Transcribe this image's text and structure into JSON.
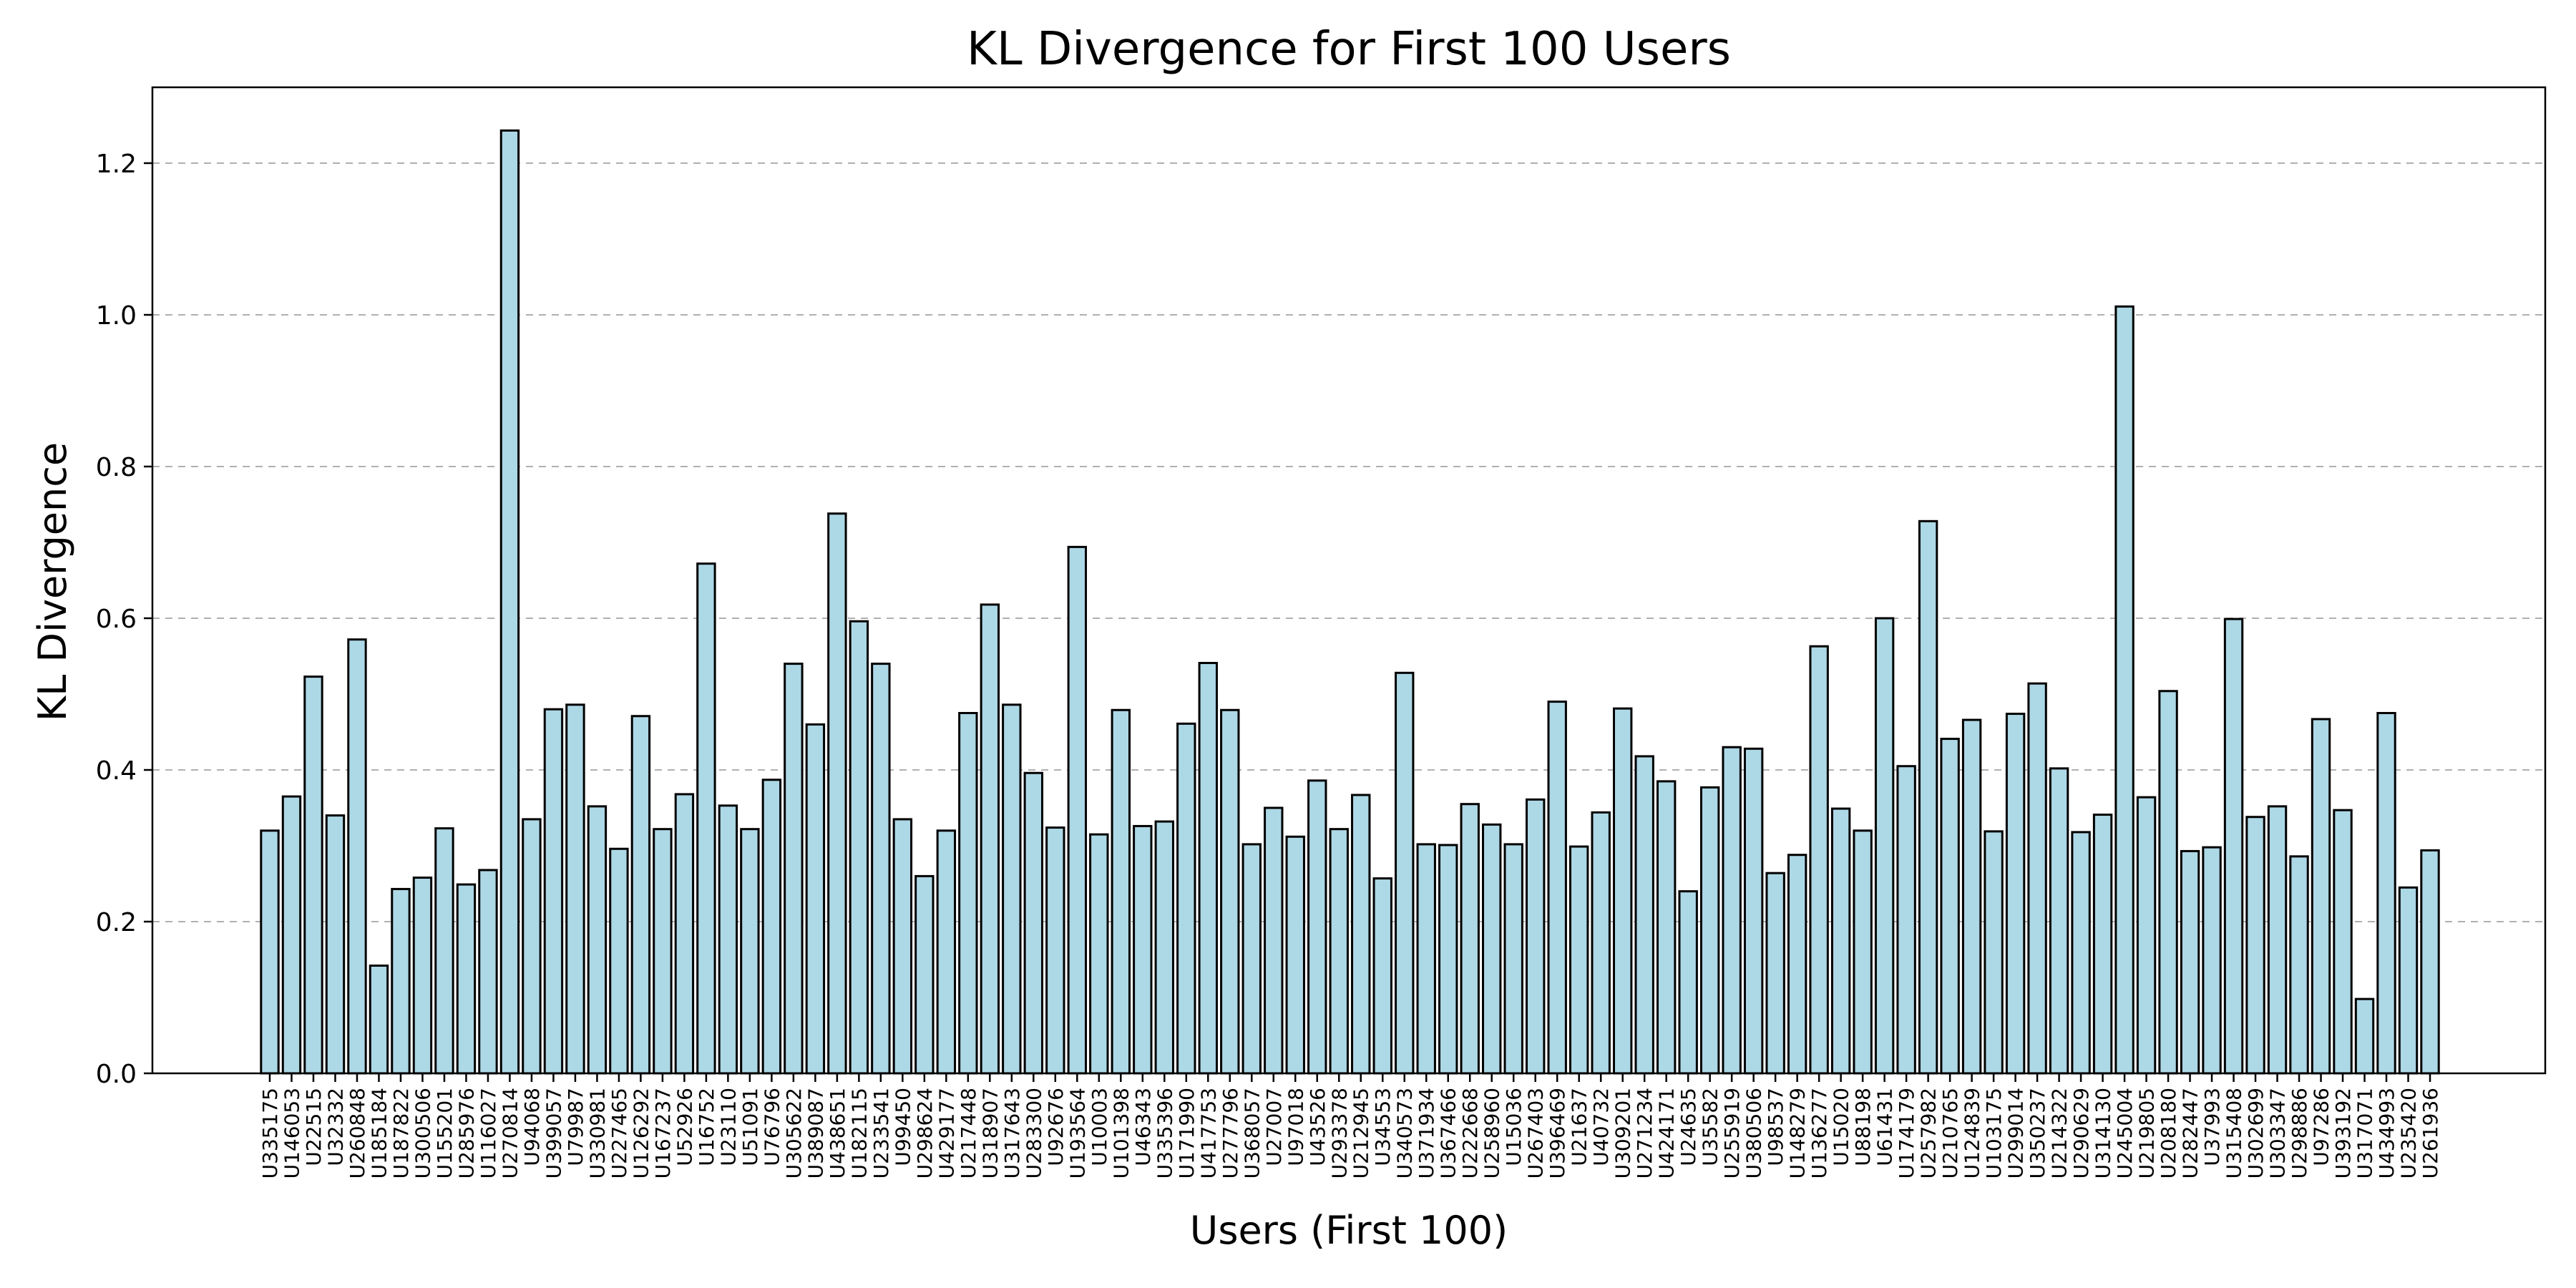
{
  "chart_data": {
    "type": "bar",
    "title": "KL Divergence for First 100 Users",
    "xlabel": "Users (First 100)",
    "ylabel": "KL Divergence",
    "ylim": [
      0,
      1.3
    ],
    "yticks": [
      0.0,
      0.2,
      0.4,
      0.6,
      0.8,
      1.0,
      1.2
    ],
    "ytick_labels": [
      "0.0",
      "0.2",
      "0.4",
      "0.6",
      "0.8",
      "1.0",
      "1.2"
    ],
    "grid": "y-axis, dashed",
    "bar_color": "#add8e6",
    "edge_color": "#000000",
    "categories": [
      "U335175",
      "U146053",
      "U22515",
      "U32332",
      "U260848",
      "U185184",
      "U187822",
      "U300506",
      "U155201",
      "U285976",
      "U116027",
      "U270814",
      "U94068",
      "U399057",
      "U79987",
      "U330981",
      "U227465",
      "U126292",
      "U167237",
      "U52926",
      "U16752",
      "U23110",
      "U51091",
      "U76796",
      "U305622",
      "U389087",
      "U438651",
      "U182115",
      "U233541",
      "U99450",
      "U298624",
      "U429177",
      "U217448",
      "U318907",
      "U317643",
      "U283300",
      "U92676",
      "U193564",
      "U10003",
      "U101398",
      "U46343",
      "U335396",
      "U171990",
      "U417753",
      "U277796",
      "U368057",
      "U27007",
      "U97018",
      "U43526",
      "U293378",
      "U212945",
      "U34553",
      "U340573",
      "U371934",
      "U367466",
      "U222668",
      "U258960",
      "U15036",
      "U267403",
      "U396469",
      "U21637",
      "U40732",
      "U309201",
      "U271234",
      "U424171",
      "U24635",
      "U35582",
      "U255919",
      "U380506",
      "U98537",
      "U148279",
      "U136277",
      "U15020",
      "U88198",
      "U61431",
      "U174179",
      "U257982",
      "U210765",
      "U124839",
      "U103175",
      "U299014",
      "U350237",
      "U214322",
      "U290629",
      "U314130",
      "U245004",
      "U219805",
      "U208180",
      "U282447",
      "U37993",
      "U315408",
      "U302699",
      "U303347",
      "U298886",
      "U97286",
      "U393192",
      "U317071",
      "U434993",
      "U235420",
      "U261936"
    ],
    "values": [
      0.32,
      0.365,
      0.523,
      0.34,
      0.572,
      0.142,
      0.243,
      0.258,
      0.323,
      0.249,
      0.268,
      1.243,
      0.335,
      0.48,
      0.486,
      0.352,
      0.296,
      0.471,
      0.322,
      0.368,
      0.672,
      0.353,
      0.322,
      0.387,
      0.54,
      0.46,
      0.738,
      0.596,
      0.54,
      0.335,
      0.26,
      0.32,
      0.475,
      0.618,
      0.486,
      0.396,
      0.324,
      0.694,
      0.315,
      0.479,
      0.326,
      0.332,
      0.461,
      0.541,
      0.479,
      0.302,
      0.35,
      0.312,
      0.386,
      0.322,
      0.367,
      0.257,
      0.528,
      0.302,
      0.301,
      0.355,
      0.328,
      0.302,
      0.361,
      0.49,
      0.299,
      0.344,
      0.481,
      0.418,
      0.385,
      0.24,
      0.377,
      0.43,
      0.428,
      0.264,
      0.288,
      0.563,
      0.349,
      0.32,
      0.6,
      0.405,
      0.728,
      0.441,
      0.466,
      0.319,
      0.474,
      0.514,
      0.402,
      0.318,
      0.341,
      1.011,
      0.364,
      0.504,
      0.293,
      0.298,
      0.599,
      0.338,
      0.352,
      0.286,
      0.467,
      0.347,
      0.098,
      0.475,
      0.245,
      0.294
    ]
  }
}
